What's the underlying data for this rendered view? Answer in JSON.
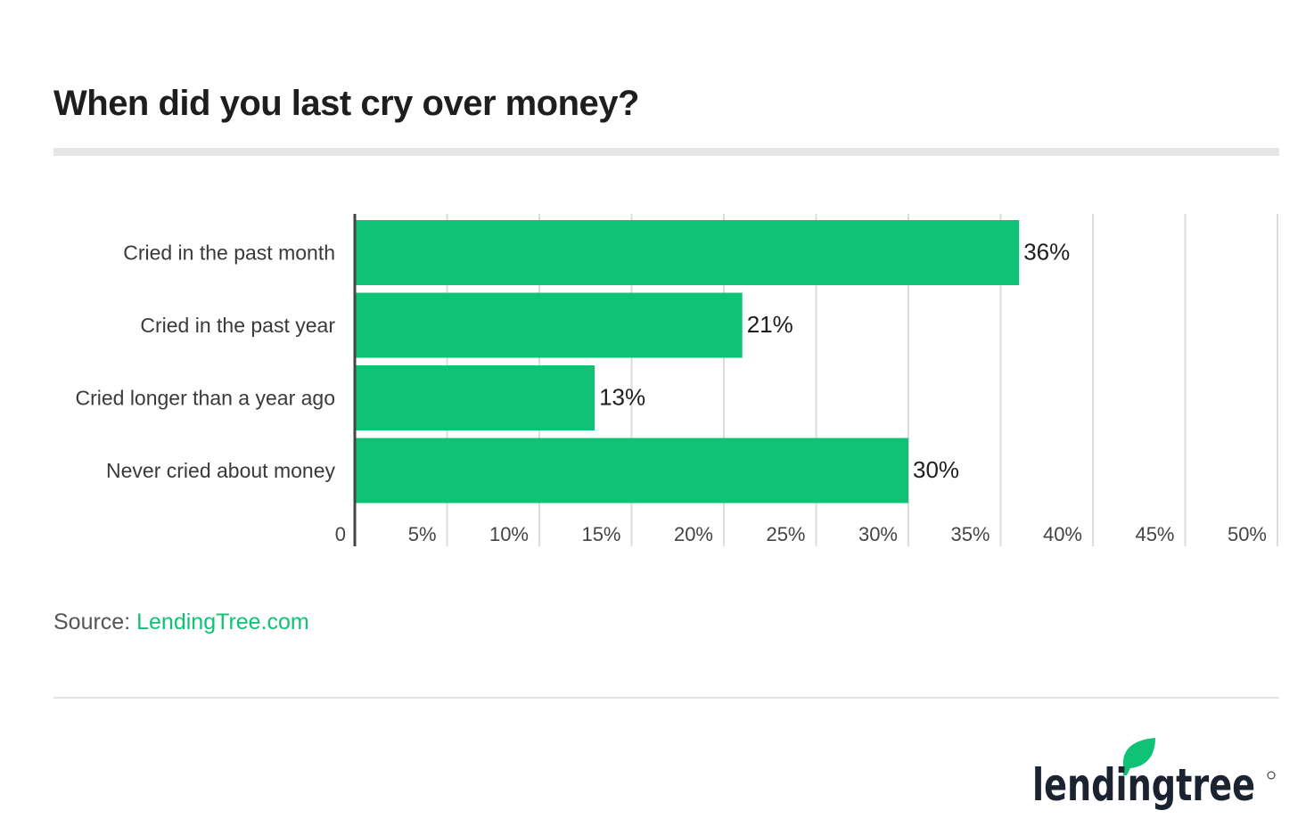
{
  "chart_data": {
    "type": "bar",
    "orientation": "horizontal",
    "title": "When did you last cry over money?",
    "categories": [
      "Cried in the past month",
      "Cried in the past year",
      "Cried longer than a year ago",
      "Never cried about money"
    ],
    "values": [
      36,
      21,
      13,
      30
    ],
    "data_labels": [
      "36%",
      "21%",
      "13%",
      "30%"
    ],
    "xlim": [
      0,
      50
    ],
    "xticks": [
      0,
      5,
      10,
      15,
      20,
      25,
      30,
      35,
      40,
      45,
      50
    ],
    "xtick_labels": [
      "0",
      "5%",
      "10%",
      "15%",
      "20%",
      "25%",
      "30%",
      "35%",
      "40%",
      "45%",
      "50%"
    ],
    "grid": true,
    "bar_color": "#0fc276"
  },
  "source": {
    "label": "Source:",
    "link": "LendingTree.com"
  },
  "logo": {
    "text": "lendingtree",
    "brand_color": "#0fc276",
    "text_color": "#1b2330"
  }
}
